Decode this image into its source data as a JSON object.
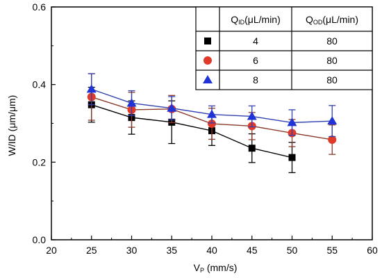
{
  "chart_data": {
    "type": "line",
    "xlabel": {
      "main": "V",
      "sub": "P",
      "rest": " (mm/s)"
    },
    "ylabel": "W/ID (μm/μm)",
    "xlim": [
      20,
      60
    ],
    "ylim": [
      0.0,
      0.6
    ],
    "xticks": [
      20,
      25,
      30,
      35,
      40,
      45,
      50,
      55,
      60
    ],
    "xtick_labels": [
      "20",
      "25",
      "30",
      "35",
      "40",
      "45",
      "50",
      "55",
      "60"
    ],
    "yticks": [
      0.0,
      0.2,
      0.4,
      0.6
    ],
    "ytick_labels": [
      "0.0",
      "0.2",
      "0.4",
      "0.6"
    ],
    "grid": false,
    "legend_position": "top-right",
    "legend_table": {
      "headers": [
        {
          "main": "Q",
          "sub": "ID",
          "rest": "(μL/min)"
        },
        {
          "main": "Q",
          "sub": "OD",
          "rest": "(μL/min)"
        }
      ],
      "rows": [
        {
          "qid": "4",
          "qod": "80"
        },
        {
          "qid": "6",
          "qod": "80"
        },
        {
          "qid": "8",
          "qod": "80"
        }
      ]
    },
    "series": [
      {
        "marker": "square",
        "color": "#000000",
        "line_color": "#000000",
        "x": [
          25,
          30,
          35,
          40,
          45,
          50
        ],
        "y": [
          0.348,
          0.315,
          0.303,
          0.281,
          0.236,
          0.212
        ],
        "err": [
          0.045,
          0.043,
          0.055,
          0.038,
          0.037,
          0.039
        ]
      },
      {
        "marker": "circle",
        "color": "#e03a2a",
        "line_color": "#8b3a2a",
        "x": [
          25,
          30,
          35,
          40,
          45,
          50,
          55
        ],
        "y": [
          0.368,
          0.335,
          0.337,
          0.299,
          0.293,
          0.275,
          0.258
        ],
        "err": [
          0.06,
          0.045,
          0.035,
          0.04,
          0.035,
          0.035,
          0.038
        ]
      },
      {
        "marker": "triangle",
        "color": "#1f33d6",
        "line_color": "#3040b0",
        "x": [
          25,
          30,
          35,
          40,
          45,
          50,
          55
        ],
        "y": [
          0.388,
          0.352,
          0.339,
          0.323,
          0.318,
          0.302,
          0.306
        ],
        "err": [
          0.04,
          0.032,
          0.03,
          0.022,
          0.027,
          0.033,
          0.04
        ]
      }
    ]
  }
}
